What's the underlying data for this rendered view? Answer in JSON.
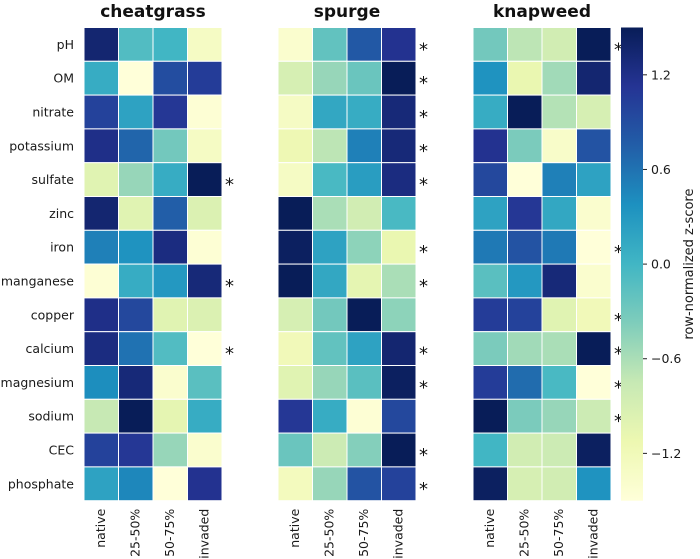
{
  "chart_data": {
    "type": "heatmap",
    "row_labels": [
      "pH",
      "OM",
      "nitrate",
      "potassium",
      "sulfate",
      "zinc",
      "iron",
      "manganese",
      "copper",
      "calcium",
      "magnesium",
      "sodium",
      "CEC",
      "phosphate"
    ],
    "column_labels": [
      "native",
      "25-50%",
      "50-75%",
      "invaded"
    ],
    "colorbar": {
      "label": "row-normalized z-score",
      "range": [
        -1.5,
        1.5
      ],
      "ticks": [
        1.2,
        0.6,
        0.0,
        -0.6,
        -1.2
      ],
      "tick_labels": [
        "1.2",
        "0.6",
        "0.0",
        "−0.6",
        "−1.2"
      ],
      "colormap": "YlGnBu"
    },
    "panels": [
      {
        "title": "cheatgrass",
        "values": [
          [
            1.35,
            -0.1,
            0.0,
            -1.3
          ],
          [
            0.1,
            -1.5,
            0.9,
            1.05
          ],
          [
            1.0,
            0.2,
            1.1,
            -1.45
          ],
          [
            1.2,
            0.7,
            -0.3,
            -1.3
          ],
          [
            -1.0,
            -0.5,
            0.1,
            1.5
          ],
          [
            1.35,
            -1.0,
            0.75,
            -0.95
          ],
          [
            0.5,
            0.35,
            1.25,
            -1.45
          ],
          [
            -1.45,
            0.1,
            0.3,
            1.3
          ],
          [
            1.2,
            0.95,
            -1.0,
            -0.95
          ],
          [
            1.25,
            0.6,
            -0.1,
            -1.5
          ],
          [
            0.4,
            1.3,
            -1.4,
            -0.15
          ],
          [
            -0.75,
            1.5,
            -1.05,
            0.1
          ],
          [
            1.0,
            1.1,
            -0.5,
            -1.4
          ],
          [
            0.2,
            0.45,
            -1.5,
            1.15
          ]
        ],
        "significance": [
          "",
          "",
          "",
          "",
          "*",
          "",
          "",
          "*",
          "",
          "*",
          "",
          "",
          "",
          ""
        ]
      },
      {
        "title": "spurge",
        "values": [
          [
            -1.4,
            -0.2,
            0.8,
            1.15
          ],
          [
            -0.9,
            -0.5,
            -0.25,
            1.5
          ],
          [
            -1.3,
            0.15,
            0.1,
            1.3
          ],
          [
            -1.15,
            -0.7,
            0.5,
            1.3
          ],
          [
            -1.3,
            -0.05,
            0.25,
            1.25
          ],
          [
            1.5,
            -0.6,
            -0.85,
            -0.05
          ],
          [
            1.45,
            0.2,
            -0.45,
            -1.1
          ],
          [
            1.5,
            0.15,
            -1.05,
            -0.6
          ],
          [
            -0.9,
            -0.3,
            1.5,
            -0.45
          ],
          [
            -1.2,
            -0.2,
            0.2,
            1.35
          ],
          [
            -1.0,
            -0.5,
            -0.15,
            1.45
          ],
          [
            1.1,
            0.1,
            -1.45,
            0.95
          ],
          [
            -0.25,
            -0.8,
            -0.4,
            1.5
          ],
          [
            -1.25,
            -0.5,
            0.85,
            1.0
          ]
        ],
        "significance": [
          "*",
          "*",
          "*",
          "*",
          "*",
          "",
          "*",
          "*",
          "",
          "*",
          "*",
          "",
          "*",
          "*"
        ]
      },
      {
        "title": "knapweed",
        "values": [
          [
            -0.3,
            -0.7,
            -0.85,
            1.5
          ],
          [
            0.35,
            -1.1,
            -0.55,
            1.35
          ],
          [
            0.1,
            1.5,
            -0.65,
            -0.9
          ],
          [
            1.15,
            -0.35,
            -1.35,
            0.85
          ],
          [
            0.95,
            -1.5,
            0.5,
            0.2
          ],
          [
            0.2,
            1.1,
            0.15,
            -1.4
          ],
          [
            0.55,
            0.85,
            0.55,
            -1.55
          ],
          [
            -0.15,
            0.3,
            1.3,
            -1.4
          ],
          [
            1.05,
            1.0,
            -1.0,
            -1.2
          ],
          [
            -0.35,
            -0.55,
            -0.6,
            1.5
          ],
          [
            1.05,
            0.65,
            -0.05,
            -1.5
          ],
          [
            1.5,
            -0.35,
            -0.5,
            -0.8
          ],
          [
            0.0,
            -0.85,
            -0.8,
            1.45
          ],
          [
            1.45,
            -0.9,
            -0.85,
            0.35
          ]
        ],
        "significance": [
          "*",
          "",
          "",
          "",
          "",
          "",
          "*",
          "",
          "*",
          "*",
          "*",
          "*",
          "",
          ""
        ]
      }
    ]
  }
}
